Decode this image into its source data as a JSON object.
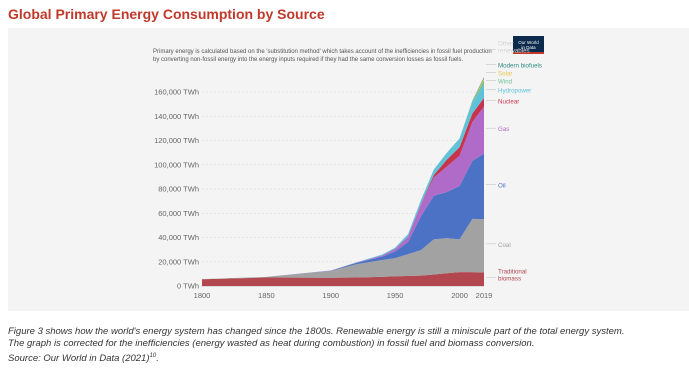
{
  "page": {
    "title": "Global Primary Energy Consumption by Source"
  },
  "note": "Primary energy is calculated based on the 'substitution method' which takes account of the inefficiencies in fossil fuel production by converting non-fossil energy into the energy inputs required if they had the same conversion losses as fossil fuels.",
  "logo": {
    "line1": "Our World",
    "line2": "in Data",
    "bg": "#0c2a4c",
    "accent": "#c0392b"
  },
  "caption": {
    "line1": "Figure 3 shows how the world's energy system has changed since the 1800s. Renewable energy is still a miniscule part of the total energy system.",
    "line2": "The graph is corrected for the inefficiencies (energy wasted as heat during combustion) in fossil fuel and biomass conversion.",
    "line3": "Source: Our World in Data (2021)",
    "line3_sup": "10",
    "line3_end": "."
  },
  "chart_data": {
    "type": "area",
    "stacked": true,
    "y_unit": "TWh",
    "ylim": [
      0,
      170000
    ],
    "y_ticks": [
      {
        "value": 0,
        "label": "0 TWh"
      },
      {
        "value": 20000,
        "label": "20,000 TWh"
      },
      {
        "value": 40000,
        "label": "40,000 TWh"
      },
      {
        "value": 60000,
        "label": "60,000 TWh"
      },
      {
        "value": 80000,
        "label": "80,000 TWh"
      },
      {
        "value": 100000,
        "label": "100,000 TWh"
      },
      {
        "value": 120000,
        "label": "120,000 TWh"
      },
      {
        "value": 140000,
        "label": "140,000 TWh"
      },
      {
        "value": 160000,
        "label": "160,000 TWh"
      }
    ],
    "xlim": [
      1800,
      2019
    ],
    "x_ticks": [
      "1800",
      "1850",
      "1900",
      "1950",
      "2000",
      "2019"
    ],
    "x": [
      1800,
      1850,
      1900,
      1920,
      1940,
      1950,
      1960,
      1970,
      1980,
      1990,
      2000,
      2010,
      2019
    ],
    "series": [
      {
        "name": "Traditional biomass",
        "legend": [
          "Traditional",
          "biomass"
        ],
        "color": "#b2474f",
        "values": [
          5600,
          7000,
          6800,
          7000,
          7500,
          8000,
          8300,
          8600,
          9500,
          10500,
          11500,
          11400,
          11100
        ]
      },
      {
        "name": "Coal",
        "legend": [
          "Coal"
        ],
        "color": "#a2a2a2",
        "values": [
          100,
          550,
          5700,
          11000,
          14000,
          15000,
          18000,
          21000,
          29000,
          29000,
          27000,
          44000,
          44000
        ]
      },
      {
        "name": "Oil",
        "legend": [
          "Oil"
        ],
        "color": "#4c72c5",
        "values": [
          0,
          0,
          200,
          1100,
          2800,
          5500,
          10000,
          28000,
          36000,
          38000,
          44000,
          48000,
          54000
        ]
      },
      {
        "name": "Gas",
        "legend": [
          "Gas"
        ],
        "color": "#b06bc8",
        "values": [
          0,
          0,
          60,
          250,
          900,
          2100,
          4500,
          10000,
          15000,
          21000,
          25000,
          32000,
          39000
        ]
      },
      {
        "name": "Nuclear",
        "legend": [
          "Nuclear"
        ],
        "color": "#c8334a",
        "values": [
          0,
          0,
          0,
          0,
          0,
          0,
          0,
          200,
          2000,
          5600,
          7000,
          7000,
          7000
        ]
      },
      {
        "name": "Hydropower",
        "legend": [
          "Hydropower"
        ],
        "color": "#5ec2d9",
        "values": [
          0,
          0,
          0,
          300,
          800,
          1100,
          2000,
          3000,
          4500,
          5500,
          7000,
          9000,
          11000
        ]
      },
      {
        "name": "Wind",
        "legend": [
          "Wind"
        ],
        "color": "#6fbf97",
        "values": [
          0,
          0,
          0,
          0,
          0,
          0,
          0,
          0,
          0,
          10,
          100,
          900,
          3500
        ]
      },
      {
        "name": "Solar",
        "legend": [
          "Solar"
        ],
        "color": "#e7c84a",
        "values": [
          0,
          0,
          0,
          0,
          0,
          0,
          0,
          0,
          0,
          0,
          5,
          100,
          1800
        ]
      },
      {
        "name": "Modern biofuels",
        "legend": [
          "Modern biofuels"
        ],
        "color": "#2d8a7e",
        "values": [
          0,
          0,
          0,
          0,
          0,
          0,
          0,
          0,
          30,
          100,
          100,
          600,
          1000
        ]
      },
      {
        "name": "Other renewables",
        "legend": [
          "Other",
          "renewables"
        ],
        "color": "#d3d3d3",
        "values": [
          0,
          0,
          0,
          0,
          0,
          0,
          0,
          10,
          60,
          130,
          200,
          350,
          600
        ]
      }
    ],
    "legend_position": "right",
    "grid": true
  }
}
